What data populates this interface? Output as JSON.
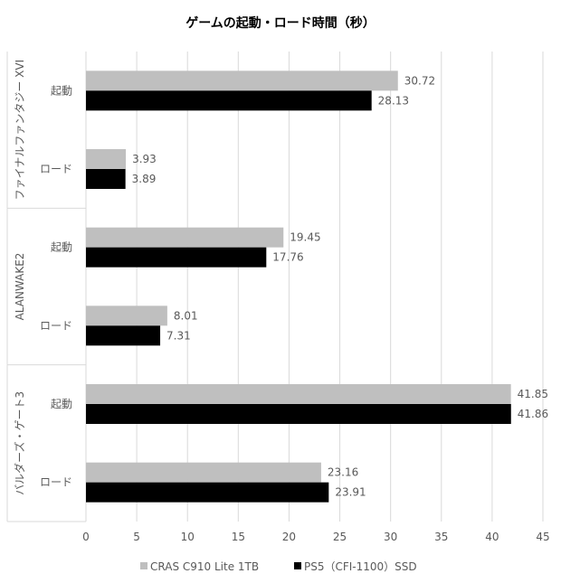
{
  "chart_data": {
    "type": "bar",
    "orientation": "horizontal",
    "title": "ゲームの起動・ロード時間（秒）",
    "groups": [
      {
        "name": "ファイナルファンタジー XVI",
        "categories": [
          "起動",
          "ロード"
        ]
      },
      {
        "name": "ALANWAKE2",
        "categories": [
          "起動",
          "ロード"
        ]
      },
      {
        "name": "バルダーズ・ゲート3",
        "categories": [
          "起動",
          "ロード"
        ]
      }
    ],
    "series": [
      {
        "name": "CRAS C910 Lite 1TB",
        "color": "#bfbfbf",
        "values": [
          30.72,
          3.93,
          19.45,
          8.01,
          41.85,
          23.16
        ]
      },
      {
        "name": "PS5（CFI-1100）SSD",
        "color": "#000000",
        "values": [
          28.13,
          3.89,
          17.76,
          7.31,
          41.86,
          23.91
        ]
      }
    ],
    "xlim": [
      0,
      45
    ],
    "xticks": [
      "0",
      "5",
      "10",
      "15",
      "20",
      "25",
      "30",
      "35",
      "40",
      "45"
    ],
    "grid": true,
    "legend": "bottom"
  }
}
